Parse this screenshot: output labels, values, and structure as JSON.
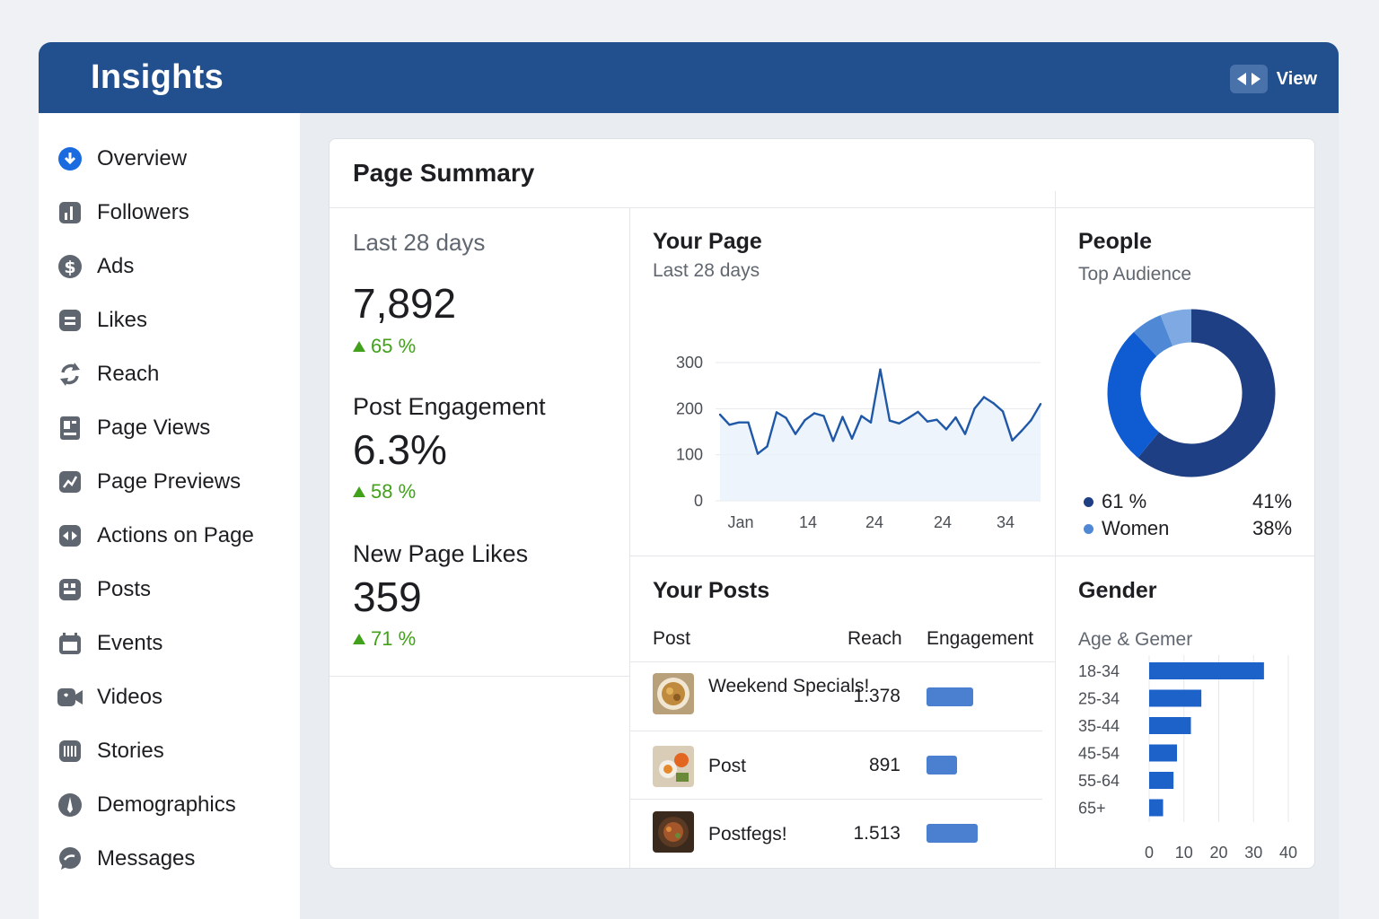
{
  "app": {
    "title": "Insights",
    "view_label": "View"
  },
  "sidebar": {
    "items": [
      {
        "label": "Overview",
        "icon": "download-circle-icon"
      },
      {
        "label": "Followers",
        "icon": "bar-chart-icon"
      },
      {
        "label": "Ads",
        "icon": "dollar-icon"
      },
      {
        "label": "Likes",
        "icon": "likes-icon"
      },
      {
        "label": "Reach",
        "icon": "refresh-icon"
      },
      {
        "label": "Page Views",
        "icon": "page-icon"
      },
      {
        "label": "Page Previews",
        "icon": "preview-icon"
      },
      {
        "label": "Actions on Page",
        "icon": "actions-icon"
      },
      {
        "label": "Posts",
        "icon": "posts-icon"
      },
      {
        "label": "Events",
        "icon": "calendar-icon"
      },
      {
        "label": "Videos",
        "icon": "video-icon"
      },
      {
        "label": "Stories",
        "icon": "stories-icon"
      },
      {
        "label": "Demographics",
        "icon": "demographics-icon"
      },
      {
        "label": "Messages",
        "icon": "message-icon"
      }
    ]
  },
  "summary": {
    "title": "Page Summary",
    "period": "Last 28 days",
    "metric1_value": "7,892",
    "metric1_delta": "65 %",
    "metric2_label": "Post Engagement",
    "metric2_value": "6.3%",
    "metric2_delta": "58 %",
    "metric3_label": "New Page Likes",
    "metric3_value": "359",
    "metric3_delta": "71 %"
  },
  "your_page": {
    "title": "Your Page",
    "subtitle": "Last 28 days"
  },
  "people": {
    "title": "People",
    "subtitle": "Top Audience",
    "legend": [
      {
        "label": "61 %",
        "value": "41%",
        "color": "#1f3f85"
      },
      {
        "label": "Women",
        "value": "38%",
        "color": "#4f89d6"
      }
    ]
  },
  "posts": {
    "title": "Your Posts",
    "col_post": "Post",
    "col_reach": "Reach",
    "col_engagement": "Engagement",
    "rows": [
      {
        "name": "Weekend Specials!",
        "reach": "1.378",
        "engagement": 1378
      },
      {
        "name": "Post",
        "reach": "891",
        "engagement": 891
      },
      {
        "name": "Postfegs!",
        "reach": "1.513",
        "engagement": 1513
      }
    ]
  },
  "gender": {
    "title": "Gender",
    "subtitle": "Age & Gemer"
  },
  "chart_data": [
    {
      "type": "line",
      "x_tick_labels": [
        "Jan",
        "14",
        "24",
        "24",
        "34"
      ],
      "ylim": [
        0,
        300
      ],
      "y_ticks": [
        300,
        200,
        100,
        0
      ],
      "grid": true,
      "series": [
        {
          "values": [
            187,
            165,
            170,
            170,
            102,
            118,
            192,
            180,
            145,
            175,
            190,
            184,
            130,
            182,
            135,
            184,
            170,
            285,
            174,
            168,
            180,
            193,
            172,
            176,
            155,
            181,
            145,
            200,
            225,
            212,
            194,
            131,
            152,
            175,
            210
          ],
          "color": "#1f58a8"
        }
      ]
    },
    {
      "type": "pie",
      "donut": true,
      "slices": [
        {
          "value": 61,
          "color": "#1f3f85"
        },
        {
          "value": 27,
          "color": "#0e5bd2"
        },
        {
          "value": 6,
          "color": "#4f89d6"
        },
        {
          "value": 6,
          "color": "#7ea9e2"
        }
      ]
    },
    {
      "type": "bar",
      "orientation": "horizontal",
      "categories": [
        "18-34",
        "25-34",
        "35-44",
        "45-54",
        "55-64",
        "65+"
      ],
      "values": [
        33,
        15,
        12,
        8,
        7,
        4
      ],
      "xlim": [
        0,
        40
      ],
      "x_ticks": [
        0,
        10,
        20,
        30,
        40
      ],
      "color": "#1c62c9"
    }
  ]
}
